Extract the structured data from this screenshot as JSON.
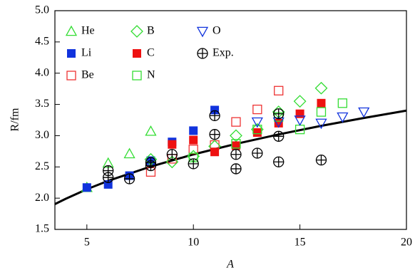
{
  "chart_data": {
    "type": "scatter",
    "x_label": "A",
    "y_label": "R/fm",
    "xlim": [
      3.5,
      20
    ],
    "ylim": [
      1.5,
      5.0
    ],
    "xticks": [
      5,
      10,
      15,
      20
    ],
    "yticks": [
      {
        "value": 1.5,
        "label": "1.5"
      },
      {
        "value": 2,
        "label": "2.0"
      },
      {
        "value": 2.5,
        "label": "2.5"
      },
      {
        "value": 3,
        "label": "3.0"
      },
      {
        "value": 3.5,
        "label": "3.5"
      },
      {
        "value": 4,
        "label": "4.0"
      },
      {
        "value": 4.5,
        "label": "4.5"
      },
      {
        "value": 5,
        "label": "5.0"
      }
    ],
    "series": [
      {
        "name": "He",
        "color": "#33dd33",
        "marker": "triangle-up-open",
        "x": [
          5,
          6,
          7,
          8
        ],
        "values": [
          2.17,
          2.56,
          2.71,
          3.07
        ]
      },
      {
        "name": "Li",
        "color": "#1133dd",
        "marker": "square-filled",
        "x": [
          5,
          6,
          7,
          8,
          9,
          10,
          11
        ],
        "values": [
          2.17,
          2.22,
          2.36,
          2.6,
          2.9,
          3.08,
          3.41
        ]
      },
      {
        "name": "Be",
        "color": "#ee3333",
        "marker": "square-open",
        "x": [
          8,
          9,
          10,
          11,
          12,
          13,
          14
        ],
        "values": [
          2.42,
          2.63,
          2.78,
          2.85,
          3.22,
          3.42,
          3.72
        ]
      },
      {
        "name": "B",
        "color": "#33dd33",
        "marker": "diamond-open",
        "x": [
          8,
          9,
          10,
          11,
          12,
          13,
          14,
          15,
          16
        ],
        "values": [
          2.62,
          2.58,
          2.67,
          2.83,
          3.0,
          3.1,
          3.38,
          3.55,
          3.76
        ]
      },
      {
        "name": "C",
        "color": "#ee1111",
        "marker": "square-filled",
        "x": [
          9,
          10,
          11,
          12,
          13,
          14,
          15,
          16
        ],
        "values": [
          2.86,
          2.93,
          2.74,
          2.84,
          3.05,
          3.2,
          3.35,
          3.52
        ]
      },
      {
        "name": "N",
        "color": "#33dd33",
        "marker": "square-open",
        "x": [
          10,
          12,
          13,
          14,
          15,
          16,
          17
        ],
        "values": [
          2.65,
          2.87,
          3.1,
          3.3,
          3.1,
          3.38,
          3.52
        ]
      },
      {
        "name": "O",
        "color": "#1133dd",
        "marker": "triangle-down-open",
        "x": [
          13,
          14,
          15,
          16,
          17,
          18
        ],
        "values": [
          3.22,
          3.22,
          3.25,
          3.2,
          3.3,
          3.38
        ]
      },
      {
        "name": "Exp.",
        "color": "#000000",
        "marker": "circle-plus",
        "x": [
          6,
          6,
          7,
          8,
          8,
          9,
          10,
          11,
          11,
          12,
          12,
          13,
          14,
          14,
          14,
          16
        ],
        "values": [
          2.44,
          2.33,
          2.31,
          2.52,
          2.57,
          2.7,
          2.55,
          3.32,
          3.02,
          2.7,
          2.47,
          2.72,
          2.99,
          3.35,
          2.58,
          2.61
        ]
      }
    ],
    "curve": {
      "color": "#000000",
      "x": [
        3.5,
        4,
        5,
        6,
        8,
        10,
        12,
        14,
        16,
        18,
        20
      ],
      "values": [
        1.905,
        1.989,
        2.143,
        2.277,
        2.506,
        2.7,
        2.869,
        3.02,
        3.157,
        3.283,
        3.401
      ]
    }
  }
}
